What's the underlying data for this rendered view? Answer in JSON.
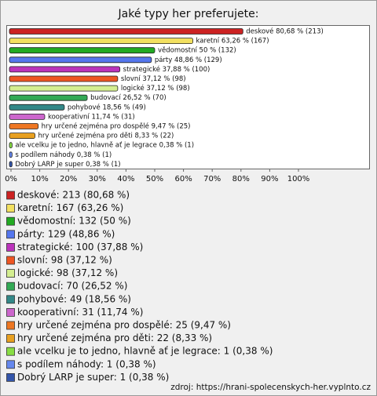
{
  "chart_data": {
    "type": "hbar",
    "title": "Jaké typy her preferujete:",
    "categories": [
      "deskové",
      "karetní",
      "vědomostní",
      "párty",
      "strategické",
      "slovní",
      "logické",
      "budovací",
      "pohybové",
      "kooperativní",
      "hry určené zejména pro dospělé",
      "hry určené zejména pro děti",
      "ale vcelku je to jedno, hlavně ať je legrace",
      "s podílem náhody",
      "Dobrý LARP je super"
    ],
    "values": [
      80.68,
      63.26,
      50,
      48.86,
      37.88,
      37.12,
      37.12,
      26.52,
      18.56,
      11.74,
      9.47,
      8.33,
      0.38,
      0.38,
      0.38
    ],
    "value_labels": [
      "deskové 80,68 % (213)",
      "karetní 63,26 % (167)",
      "vědomostní 50 % (132)",
      "párty 48,86 % (129)",
      "strategické 37,88 % (100)",
      "slovní 37,12 % (98)",
      "logické 37,12 % (98)",
      "budovací 26,52 % (70)",
      "pohybové 18,56 % (49)",
      "kooperativní 11,74 % (31)",
      "hry určené zejména pro dospělé 9,47 % (25)",
      "hry určené zejména pro děti 8,33 % (22)",
      "ale vcelku je to jedno, hlavně ať je legrace 0,38 % (1)",
      "s podílem náhody 0,38 % (1)",
      "Dobrý LARP je super 0,38 % (1)"
    ],
    "colors": [
      "#cc2222",
      "#f2e060",
      "#22aa22",
      "#5577ee",
      "#bb33bb",
      "#ee5522",
      "#d4ee90",
      "#33aa55",
      "#338888",
      "#cc66cc",
      "#ee7722",
      "#e8a020",
      "#88dd44",
      "#6688ee",
      "#3355aa"
    ],
    "legend": [
      "deskové: 213 (80,68 %)",
      "karetní: 167 (63,26 %)",
      "vědomostní: 132 (50 %)",
      "párty: 129 (48,86 %)",
      "strategické: 100 (37,88 %)",
      "slovní: 98 (37,12 %)",
      "logické: 98 (37,12 %)",
      "budovací: 70 (26,52 %)",
      "pohybové: 49 (18,56 %)",
      "kooperativní: 31 (11,74 %)",
      "hry určené zejména pro dospělé: 25 (9,47 %)",
      "hry určené zejména pro děti: 22 (8,33 %)",
      "ale vcelku je to jedno, hlavně ať je legrace: 1 (0,38 %)",
      "s podílem náhody: 1 (0,38 %)",
      "Dobrý LARP je super: 1 (0,38 %)"
    ],
    "xlim": [
      0,
      100
    ],
    "xticks": [
      {
        "value": 0,
        "label": "0%"
      },
      {
        "value": 10,
        "label": "10%"
      },
      {
        "value": 20,
        "label": "20%"
      },
      {
        "value": 30,
        "label": "30%"
      },
      {
        "value": 40,
        "label": "40%"
      },
      {
        "value": 50,
        "label": "50%"
      },
      {
        "value": 60,
        "label": "60%"
      },
      {
        "value": 70,
        "label": "70%"
      },
      {
        "value": 80,
        "label": "80%"
      },
      {
        "value": 90,
        "label": "90%"
      },
      {
        "value": 100,
        "label": "100%"
      }
    ],
    "source": "zdroj: https://hrani-spolecenskych-her.vyplnto.cz"
  }
}
